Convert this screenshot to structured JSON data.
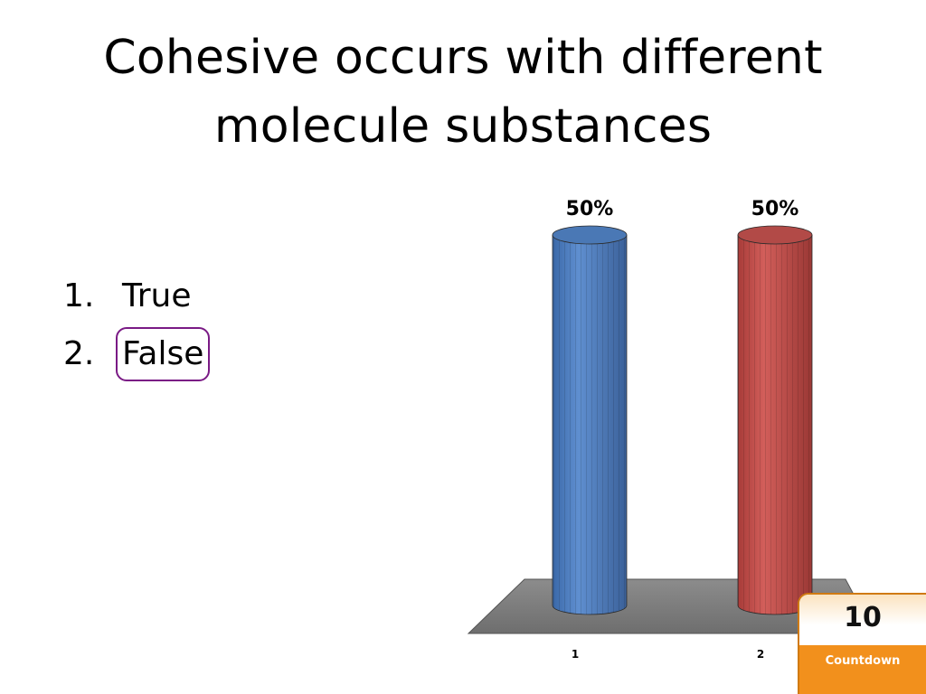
{
  "slide": {
    "title_line1": "Cohesive occurs with different",
    "title_line2": "molecule substances"
  },
  "answers": [
    {
      "number": "1.",
      "text": "True",
      "correct": false
    },
    {
      "number": "2.",
      "text": "False",
      "correct": true
    }
  ],
  "chart_data": {
    "type": "bar",
    "categories": [
      "1",
      "2"
    ],
    "values": [
      50,
      50
    ],
    "data_labels": [
      "50%",
      "50%"
    ],
    "ylim": [
      0,
      50
    ],
    "title": "",
    "xlabel": "",
    "ylabel": "",
    "grid": false,
    "colors": [
      "#4f81bd",
      "#c0504d"
    ],
    "floor_color": "#7f7f7f"
  },
  "countdown": {
    "value": "10",
    "label": "Countdown"
  }
}
